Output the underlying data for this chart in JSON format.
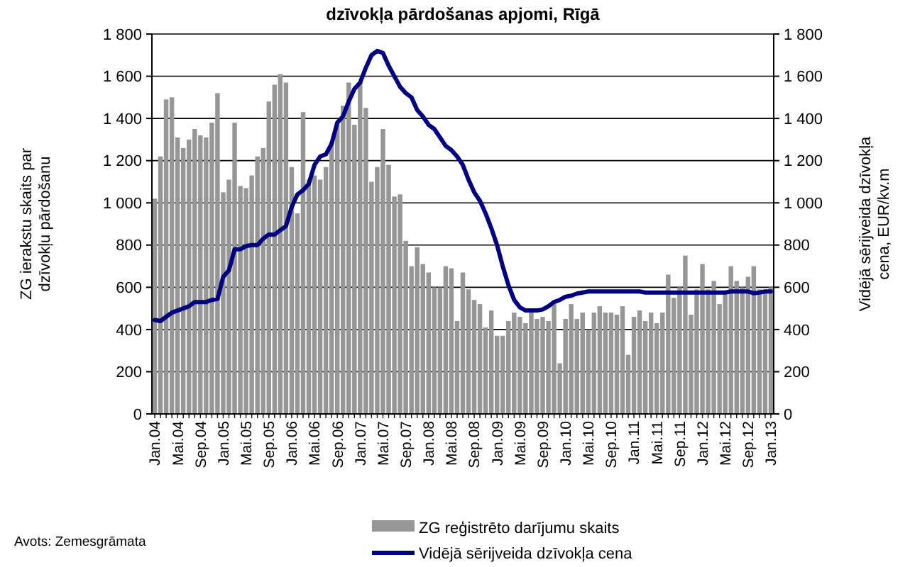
{
  "chart_data": {
    "type": "bar",
    "title": "dzīvokļa pārdošanas apjomi, Rīgā",
    "ylabel": "ZG ierakstu skaits par dzīvokļu pārdošanu",
    "y2label": "Vidējā sērijveida dzīvokļa cena, EUR/kv.m",
    "annotations": [
      "Avots: Zemesgrāmata"
    ],
    "categories": [
      "Jan.04",
      null,
      null,
      null,
      "Mai.04",
      null,
      null,
      null,
      "Sep.04",
      null,
      null,
      null,
      "Jan.05",
      null,
      null,
      null,
      "Mai.05",
      null,
      null,
      null,
      "Sep.05",
      null,
      null,
      null,
      "Jan.06",
      null,
      null,
      null,
      "Mai.06",
      null,
      null,
      null,
      "Sep.06",
      null,
      null,
      null,
      "Jan.07",
      null,
      null,
      null,
      "Mai.07",
      null,
      null,
      null,
      "Sep.07",
      null,
      null,
      null,
      "Jan.08",
      null,
      null,
      null,
      "Mai.08",
      null,
      null,
      null,
      "Sep.08",
      null,
      null,
      null,
      "Jan.09",
      null,
      null,
      null,
      "Mai.09",
      null,
      null,
      null,
      "Sep.09",
      null,
      null,
      null,
      "Jan.10",
      null,
      null,
      null,
      "Mai.10",
      null,
      null,
      null,
      "Sep.10",
      null,
      null,
      null,
      "Jan.11",
      null,
      null,
      null,
      "Mai.11",
      null,
      null,
      null,
      "Sep.11",
      null,
      null,
      null,
      "Jan.12",
      null,
      null,
      null,
      "Mai.12",
      null,
      null,
      null,
      "Sep.12",
      null,
      null,
      null,
      "Jan.13"
    ],
    "series": [
      {
        "name": "ZG reģistrēto darījumu skaits",
        "color": "#969696",
        "values": [
          1020,
          1220,
          1490,
          1500,
          1310,
          1260,
          1300,
          1350,
          1320,
          1310,
          1380,
          1520,
          1050,
          1110,
          1380,
          1080,
          1070,
          1130,
          1220,
          1260,
          1480,
          1560,
          1610,
          1570,
          1170,
          950,
          1430,
          1110,
          1130,
          1110,
          1170,
          1290,
          1380,
          1460,
          1570,
          1370,
          1570,
          1450,
          1100,
          1170,
          1350,
          1180,
          1030,
          1040,
          820,
          700,
          790,
          710,
          670,
          600,
          600,
          700,
          690,
          440,
          670,
          590,
          540,
          520,
          410,
          490,
          370,
          370,
          440,
          480,
          460,
          430,
          480,
          450,
          460,
          440,
          520,
          240,
          450,
          520,
          450,
          480,
          400,
          480,
          510,
          480,
          480,
          470,
          510,
          280,
          460,
          490,
          440,
          480,
          430,
          480,
          660,
          550,
          600,
          750,
          470,
          590,
          710,
          590,
          630,
          520,
          580,
          700,
          630,
          600,
          650,
          700,
          590,
          580,
          600
        ]
      },
      {
        "name": "Vidējā sērijveida dzīvokļa cena",
        "type": "line",
        "axis": "y2",
        "color": "#000080",
        "values": [
          445,
          440,
          460,
          480,
          490,
          500,
          510,
          530,
          530,
          530,
          540,
          545,
          650,
          680,
          780,
          780,
          795,
          800,
          800,
          830,
          850,
          850,
          870,
          890,
          980,
          1040,
          1060,
          1090,
          1180,
          1220,
          1230,
          1280,
          1380,
          1410,
          1480,
          1540,
          1570,
          1640,
          1700,
          1720,
          1710,
          1650,
          1600,
          1550,
          1520,
          1500,
          1440,
          1410,
          1370,
          1350,
          1310,
          1270,
          1250,
          1220,
          1180,
          1110,
          1050,
          1010,
          950,
          880,
          800,
          700,
          610,
          540,
          505,
          490,
          490,
          490,
          495,
          510,
          530,
          540,
          555,
          560,
          570,
          575,
          580,
          580,
          580,
          580,
          580,
          580,
          580,
          580,
          580,
          580,
          575,
          575,
          575,
          575,
          575,
          575,
          575,
          575,
          575,
          575,
          575,
          575,
          575,
          575,
          575,
          580,
          580,
          580,
          580,
          572,
          575,
          580,
          580
        ]
      }
    ],
    "ylim": [
      0,
      1800
    ],
    "yticks": [
      0,
      {
        "value": 200,
        "label": "200"
      },
      {
        "value": 400,
        "label": "400"
      },
      {
        "value": 600,
        "label": "600"
      },
      {
        "value": 800,
        "label": "800"
      },
      {
        "value": 1000,
        "label": "1 000"
      },
      {
        "value": 1200,
        "label": "1 200"
      },
      {
        "value": 1400,
        "label": "1 400"
      },
      {
        "value": 1600,
        "label": "1 600"
      },
      {
        "value": 1800,
        "label": "1 800"
      }
    ],
    "y2lim": [
      0,
      1800
    ],
    "y2ticks": [
      0,
      {
        "value": 200,
        "label": "200"
      },
      {
        "value": 400,
        "label": "400"
      },
      {
        "value": 600,
        "label": "600"
      },
      {
        "value": 800,
        "label": "800"
      },
      {
        "value": 1000,
        "label": "1 000"
      },
      {
        "value": 1200,
        "label": "1 200"
      },
      {
        "value": 1400,
        "label": "1 400"
      },
      {
        "value": 1600,
        "label": "1 600"
      },
      {
        "value": 1800,
        "label": "1 800"
      }
    ],
    "grid": "y",
    "legend": "bottom",
    "marker": "none",
    "line_style": "solid"
  }
}
